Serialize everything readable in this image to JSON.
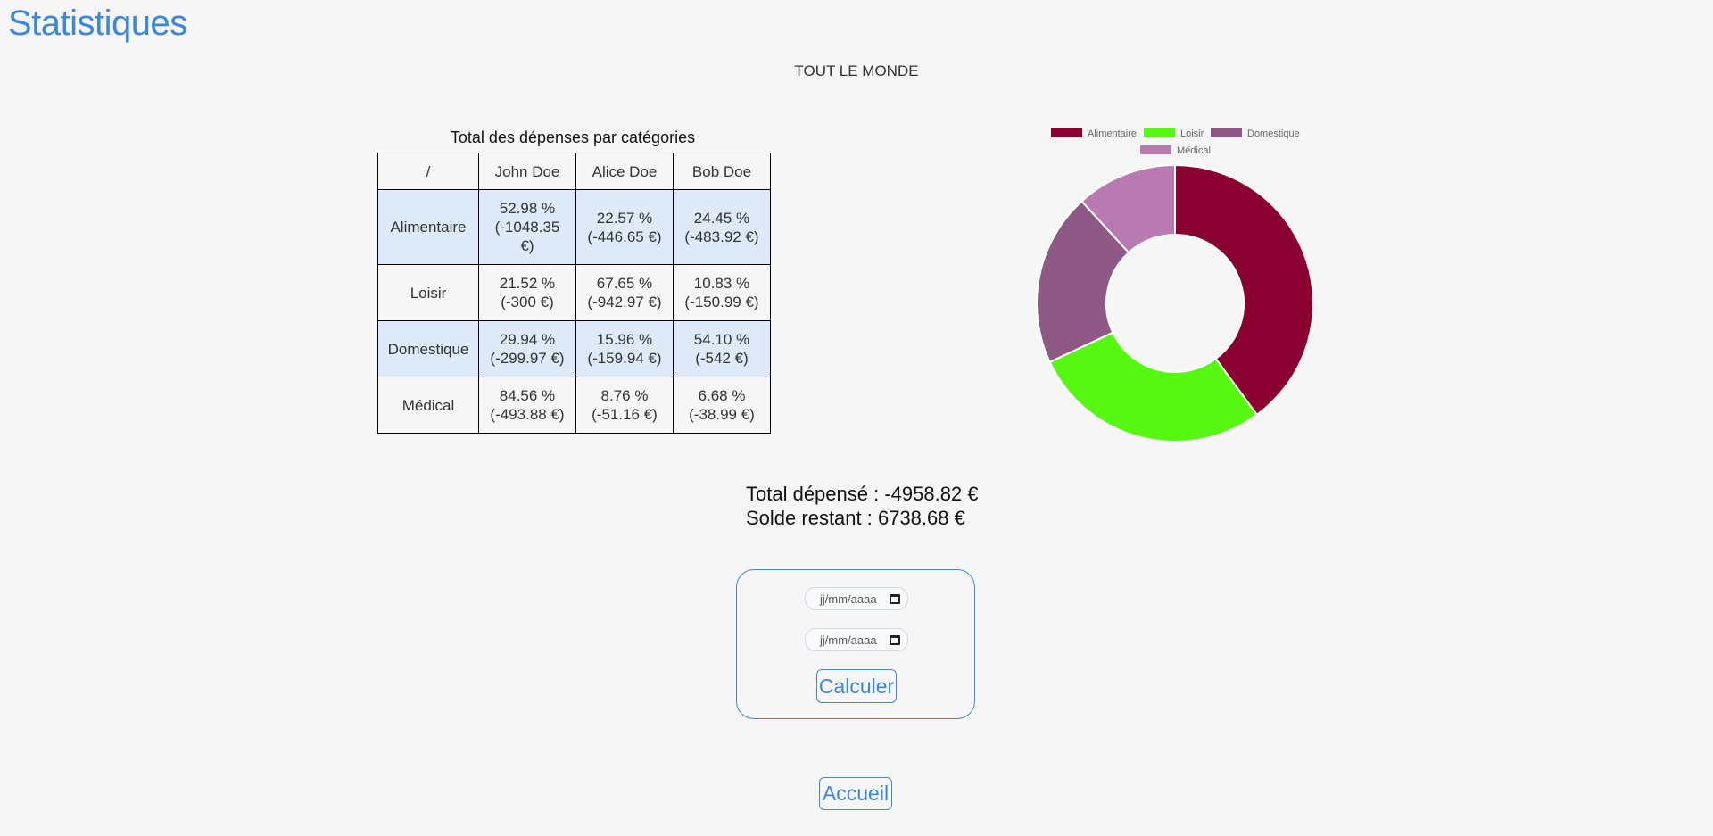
{
  "page": {
    "title": "Statistiques",
    "subtitle": "TOUT LE MONDE"
  },
  "table": {
    "caption": "Total des dépenses par catégories",
    "corner": "/",
    "columns": [
      "John Doe",
      "Alice Doe",
      "Bob Doe"
    ],
    "rows": [
      {
        "category": "Alimentaire",
        "cells": [
          {
            "pct": "52.98 %",
            "amount": "(-1048.35 €)"
          },
          {
            "pct": "22.57 %",
            "amount": "(-446.65 €)"
          },
          {
            "pct": "24.45 %",
            "amount": "(-483.92 €)"
          }
        ]
      },
      {
        "category": "Loisir",
        "cells": [
          {
            "pct": "21.52 %",
            "amount": "(-300 €)"
          },
          {
            "pct": "67.65 %",
            "amount": "(-942.97 €)"
          },
          {
            "pct": "10.83 %",
            "amount": "(-150.99 €)"
          }
        ]
      },
      {
        "category": "Domestique",
        "cells": [
          {
            "pct": "29.94 %",
            "amount": "(-299.97 €)"
          },
          {
            "pct": "15.96 %",
            "amount": "(-159.94 €)"
          },
          {
            "pct": "54.10 %",
            "amount": "(-542 €)"
          }
        ]
      },
      {
        "category": "Médical",
        "cells": [
          {
            "pct": "84.56 %",
            "amount": "(-493.88 €)"
          },
          {
            "pct": "8.76 %",
            "amount": "(-51.16 €)"
          },
          {
            "pct": "6.68 %",
            "amount": "(-38.99 €)"
          }
        ]
      }
    ]
  },
  "colors": {
    "accent": "#3b87e0",
    "row_shade": "#deeafa"
  },
  "chart_data": {
    "type": "pie",
    "subtype": "doughnut",
    "legend_position": "top",
    "categories": [
      "Alimentaire",
      "Loisir",
      "Domestique",
      "Médical"
    ],
    "values": [
      1978.92,
      1394.0,
      1001.91,
      584.03
    ],
    "colors": [
      "#8a0030",
      "#56f713",
      "#8e5a85",
      "#b87ab0"
    ]
  },
  "totals": {
    "spent": "Total dépensé : -4958.82 €",
    "remaining": "Solde restant : 6738.68 €"
  },
  "form": {
    "date_start_placeholder": "jj/mm/aaaa",
    "date_end_placeholder": "jj/mm/aaaa",
    "submit_label": "Calculer"
  },
  "footer": {
    "home_label": "Accueil"
  }
}
